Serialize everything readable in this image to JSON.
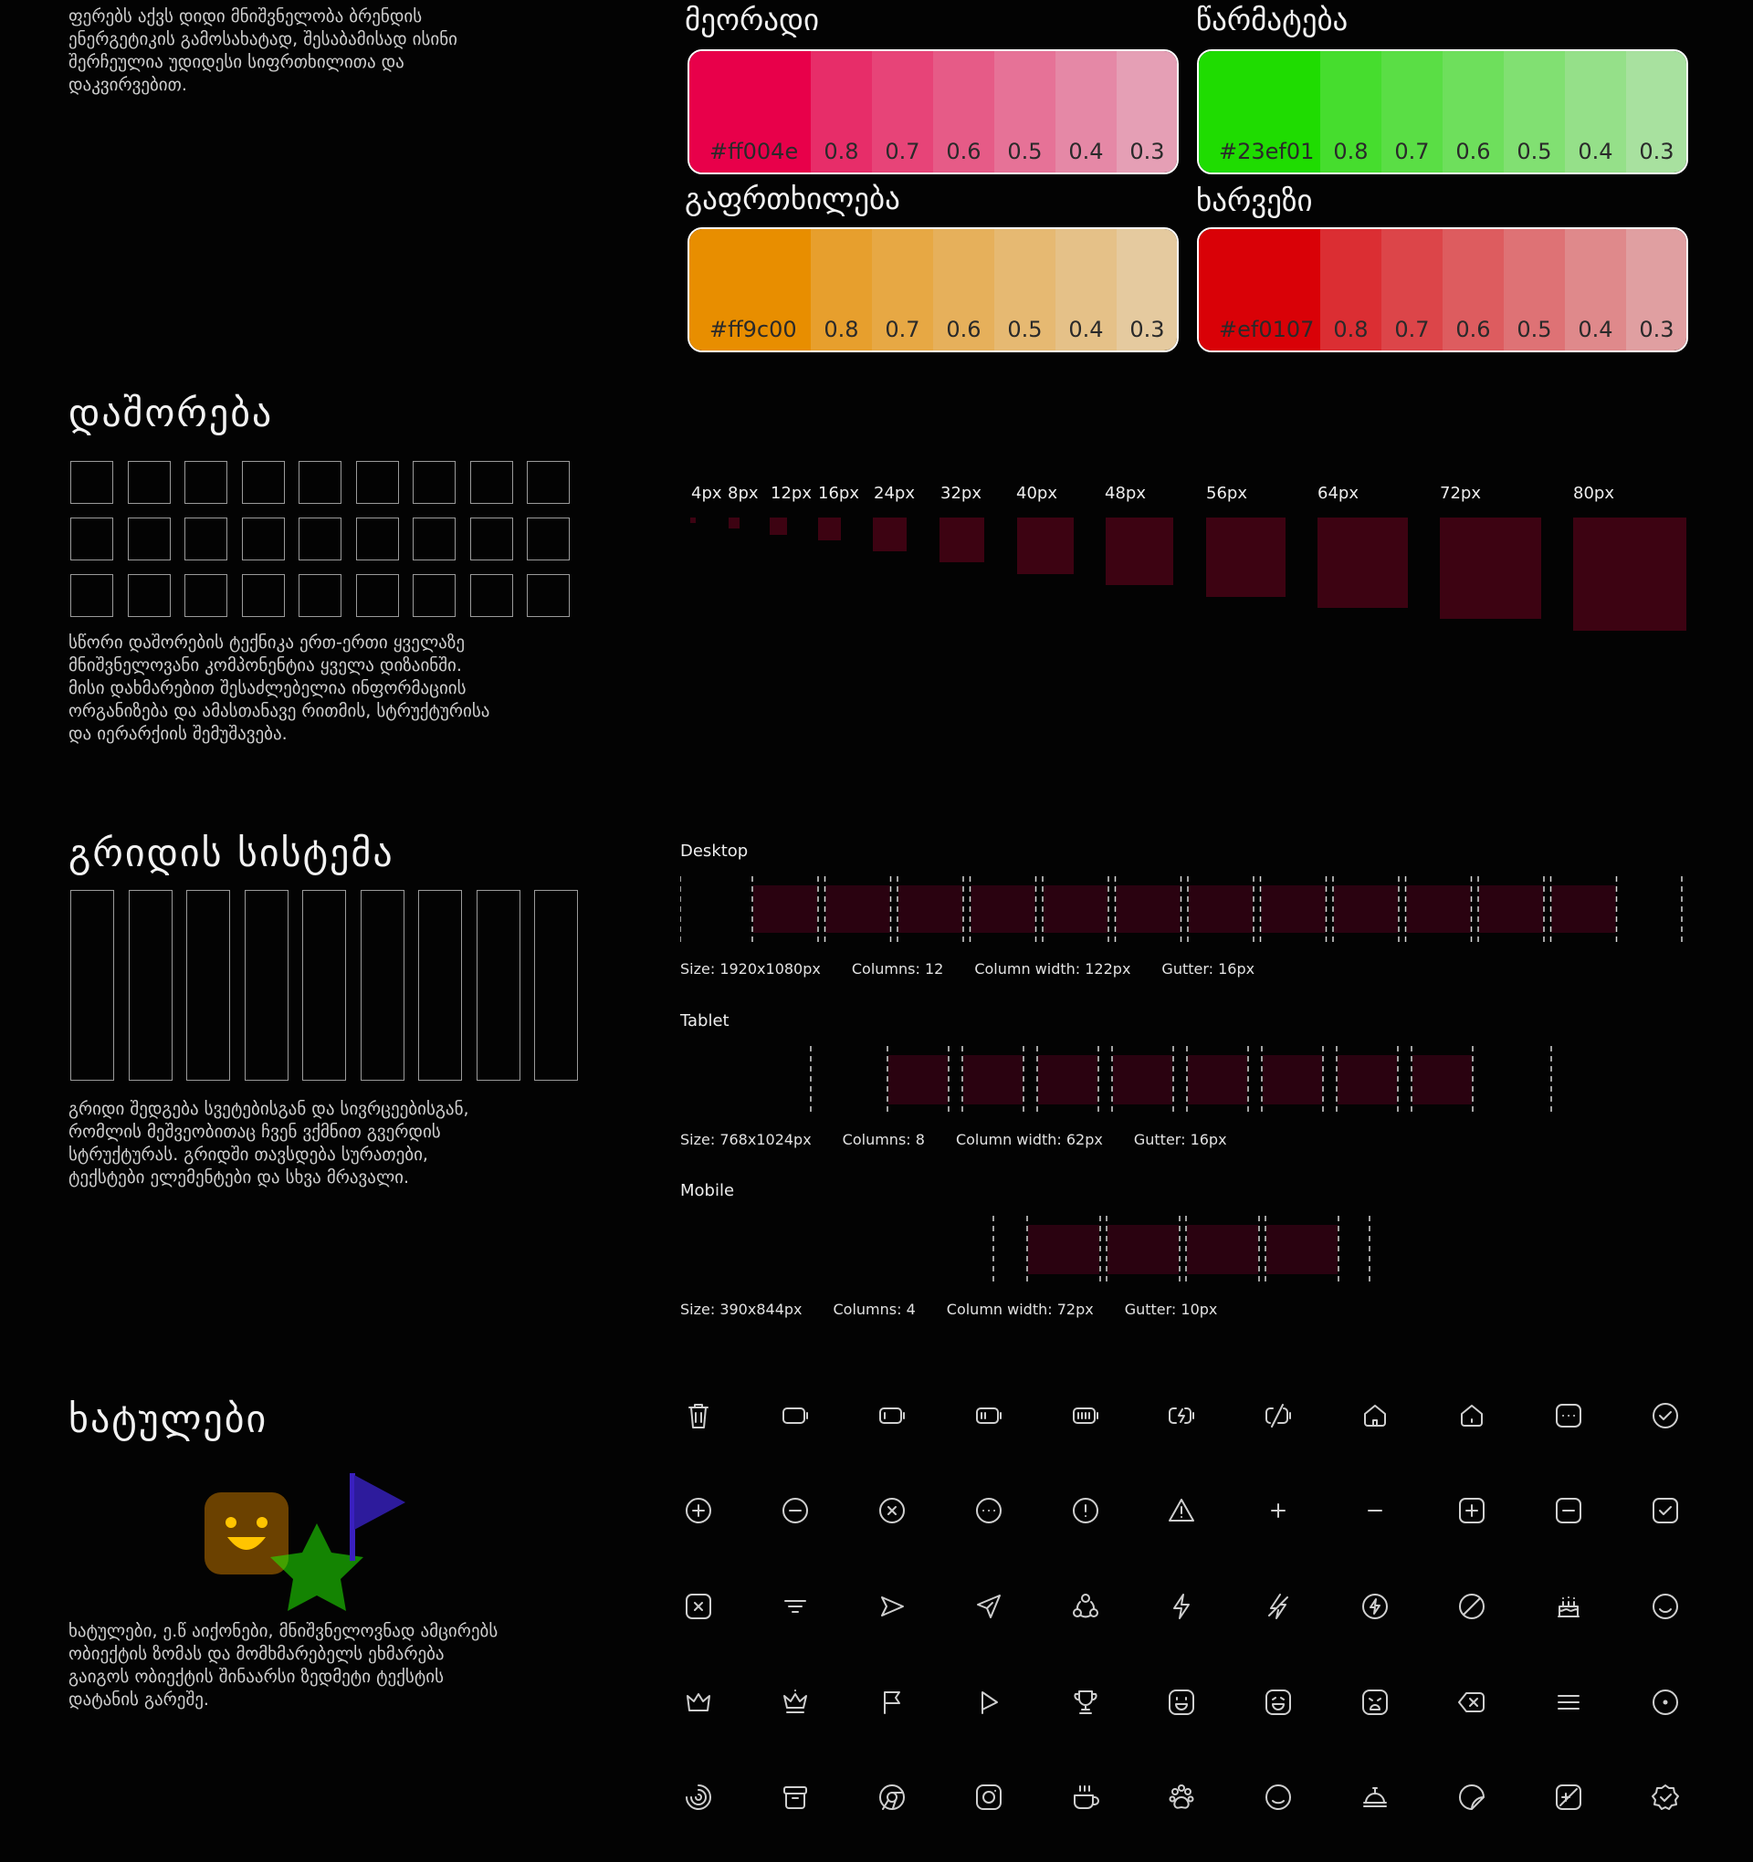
{
  "intro_text": "ფერებს აქვს დიდი მნიშვნელობა ბრენდის\nენერგეტიკის გამოსახატად, შესაბამისად ისინი\nშერჩეულია უდიდესი სიფრთხილითა და\nდაკვირვებით.",
  "palettes": [
    {
      "title": "მეორადი",
      "hex": "#ff004e",
      "color": "#e8004a",
      "steps": [
        "0.8",
        "0.7",
        "0.6",
        "0.5",
        "0.4",
        "0.3"
      ]
    },
    {
      "title": "წარმატება",
      "hex": "#23ef01",
      "color": "#1fdc01",
      "steps": [
        "0.8",
        "0.7",
        "0.6",
        "0.5",
        "0.4",
        "0.3"
      ]
    },
    {
      "title": "გაფრთხილება",
      "hex": "#ff9c00",
      "color": "#e88e00",
      "steps": [
        "0.8",
        "0.7",
        "0.6",
        "0.5",
        "0.4",
        "0.3"
      ]
    },
    {
      "title": "ხარვეზი",
      "hex": "#ef0107",
      "color": "#d90107",
      "steps": [
        "0.8",
        "0.7",
        "0.6",
        "0.5",
        "0.4",
        "0.3"
      ]
    }
  ],
  "spacing": {
    "title": "დაშორება",
    "text": "სწორი დაშორების ტექნიკა ერთ-ერთი ყველაზე\nმნიშვნელოვანი კომპონენტია ყველა დიზაინში.\nმისი დახმარებით შესაძლებელია ინფორმაციის\nორგანიზება და ამასთანავე რითმის, სტრუქტურისა\nდა იერარქიის შემუშავება.",
    "scale": [
      "4px",
      "8px",
      "12px",
      "16px",
      "24px",
      "32px",
      "40px",
      "48px",
      "56px",
      "64px",
      "72px",
      "80px"
    ],
    "scale_values": [
      4,
      8,
      12,
      16,
      24,
      32,
      40,
      48,
      56,
      64,
      72,
      80
    ]
  },
  "grid": {
    "title": "გრიდის სისტემა",
    "text": "გრიდი შედგება სვეტებისგან და სივრცეებისგან,\nრომლის მეშვეობითაც ჩვენ ვქმნით გვერდის\nსტრუქტურას. გრიდში თავსდება სურათები,\nტექსტები ელემენტები და სხვა მრავალი.",
    "devices": [
      {
        "name": "Desktop",
        "size": "Size: 1920x1080px",
        "columns": "Columns: 12",
        "col_width": "Column width: 122px",
        "gutter": "Gutter: 16px"
      },
      {
        "name": "Tablet",
        "size": "Size: 768x1024px",
        "columns": "Columns: 8",
        "col_width": "Column width: 62px",
        "gutter": "Gutter: 16px"
      },
      {
        "name": "Mobile",
        "size": "Size: 390x844px",
        "columns": "Columns: 4",
        "col_width": "Column width: 72px",
        "gutter": "Gutter: 10px"
      }
    ]
  },
  "icons_section": {
    "title": "ხატულები",
    "text": "ხატულები, ე.წ აიქონები, მნიშვნელოვნად ამცირებს\nობიექტის ზომას და მომხმარებელს ეხმარება\nგაიგოს ობიექტის შინაარსი ზედმეტი ტექსტის\nდატანის გარეშე.",
    "icons": [
      "trash-icon",
      "battery-empty-icon",
      "battery-low-icon",
      "battery-medium-icon",
      "battery-full-icon",
      "battery-charging-icon",
      "battery-slash-icon",
      "home-icon",
      "home-alt-icon",
      "message-dots-icon",
      "check-circle-icon",
      "plus-circle-icon",
      "minus-circle-icon",
      "x-circle-icon",
      "dots-circle-icon",
      "exclamation-circle-icon",
      "warning-triangle-icon",
      "plus-icon",
      "minus-icon",
      "plus-square-icon",
      "minus-square-icon",
      "check-square-icon",
      "x-square-icon",
      "filter-icon",
      "send-icon",
      "paper-plane-icon",
      "share-nodes-icon",
      "bolt-icon",
      "bolt-slash-icon",
      "bolt-circle-icon",
      "ban-icon",
      "cake-icon",
      "smile-circle-icon",
      "crown-icon",
      "crown-jewel-icon",
      "flag-icon",
      "play-flag-icon",
      "trophy-icon",
      "happy-face-square-icon",
      "grin-face-square-icon",
      "sad-face-square-icon",
      "backspace-icon",
      "menu-icon",
      "record-icon",
      "spinner-icon",
      "archive-icon",
      "chrome-icon",
      "instagram-icon",
      "coffee-icon",
      "paw-icon",
      "circle-icon",
      "bell-service-icon",
      "sticker-icon",
      "edit-square-icon",
      "badge-check-icon"
    ]
  },
  "colors": {
    "spacing_box": "#3d0312",
    "grid_col": "#2a0210"
  }
}
